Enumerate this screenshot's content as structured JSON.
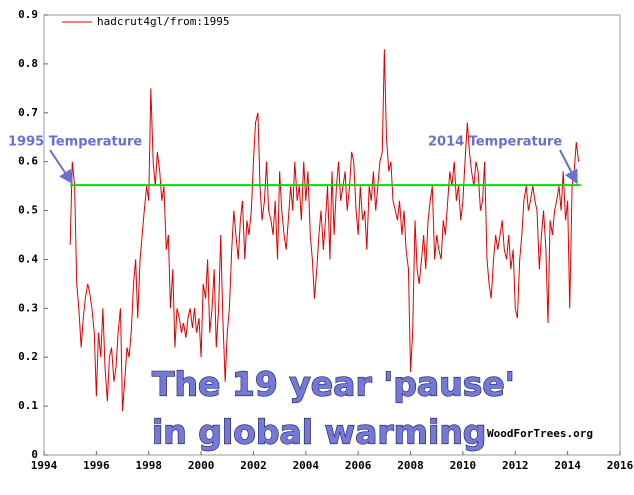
{
  "chart_data": {
    "type": "line",
    "series": [
      {
        "name": "hadcrut4gl/from:1995",
        "color": "#e00000",
        "x": [
          1995.0,
          1995.08,
          1995.17,
          1995.25,
          1995.33,
          1995.42,
          1995.5,
          1995.58,
          1995.67,
          1995.75,
          1995.83,
          1995.92,
          1996.0,
          1996.08,
          1996.17,
          1996.25,
          1996.33,
          1996.42,
          1996.5,
          1996.58,
          1996.67,
          1996.75,
          1996.83,
          1996.92,
          1997.0,
          1997.08,
          1997.17,
          1997.25,
          1997.33,
          1997.42,
          1997.5,
          1997.58,
          1997.67,
          1997.75,
          1997.83,
          1997.92,
          1998.0,
          1998.08,
          1998.17,
          1998.25,
          1998.33,
          1998.42,
          1998.5,
          1998.58,
          1998.67,
          1998.75,
          1998.83,
          1998.92,
          1999.0,
          1999.08,
          1999.17,
          1999.25,
          1999.33,
          1999.42,
          1999.5,
          1999.58,
          1999.67,
          1999.75,
          1999.83,
          1999.92,
          2000.0,
          2000.08,
          2000.17,
          2000.25,
          2000.33,
          2000.42,
          2000.5,
          2000.58,
          2000.67,
          2000.75,
          2000.83,
          2000.92,
          2001.0,
          2001.08,
          2001.17,
          2001.25,
          2001.33,
          2001.42,
          2001.5,
          2001.58,
          2001.67,
          2001.75,
          2001.83,
          2001.92,
          2002.0,
          2002.08,
          2002.17,
          2002.25,
          2002.33,
          2002.42,
          2002.5,
          2002.58,
          2002.67,
          2002.75,
          2002.83,
          2002.92,
          2003.0,
          2003.08,
          2003.17,
          2003.25,
          2003.33,
          2003.42,
          2003.5,
          2003.58,
          2003.67,
          2003.75,
          2003.83,
          2003.92,
          2004.0,
          2004.08,
          2004.17,
          2004.25,
          2004.33,
          2004.42,
          2004.5,
          2004.58,
          2004.67,
          2004.75,
          2004.83,
          2004.92,
          2005.0,
          2005.08,
          2005.17,
          2005.25,
          2005.33,
          2005.42,
          2005.5,
          2005.58,
          2005.67,
          2005.75,
          2005.83,
          2005.92,
          2006.0,
          2006.08,
          2006.17,
          2006.25,
          2006.33,
          2006.42,
          2006.5,
          2006.58,
          2006.67,
          2006.75,
          2006.83,
          2006.92,
          2007.0,
          2007.08,
          2007.17,
          2007.25,
          2007.33,
          2007.42,
          2007.5,
          2007.58,
          2007.67,
          2007.75,
          2007.83,
          2007.92,
          2008.0,
          2008.08,
          2008.17,
          2008.25,
          2008.33,
          2008.42,
          2008.5,
          2008.58,
          2008.67,
          2008.75,
          2008.83,
          2008.92,
          2009.0,
          2009.08,
          2009.17,
          2009.25,
          2009.33,
          2009.42,
          2009.5,
          2009.58,
          2009.67,
          2009.75,
          2009.83,
          2009.92,
          2010.0,
          2010.08,
          2010.17,
          2010.25,
          2010.33,
          2010.42,
          2010.5,
          2010.58,
          2010.67,
          2010.75,
          2010.83,
          2010.92,
          2011.0,
          2011.08,
          2011.17,
          2011.25,
          2011.33,
          2011.42,
          2011.5,
          2011.58,
          2011.67,
          2011.75,
          2011.83,
          2011.92,
          2012.0,
          2012.08,
          2012.17,
          2012.25,
          2012.33,
          2012.42,
          2012.5,
          2012.58,
          2012.67,
          2012.75,
          2012.83,
          2012.92,
          2013.0,
          2013.08,
          2013.17,
          2013.25,
          2013.33,
          2013.42,
          2013.5,
          2013.58,
          2013.67,
          2013.75,
          2013.83,
          2013.92,
          2014.0,
          2014.08,
          2014.17,
          2014.25,
          2014.33,
          2014.42
        ],
        "values": [
          0.43,
          0.6,
          0.55,
          0.35,
          0.3,
          0.22,
          0.28,
          0.32,
          0.35,
          0.33,
          0.3,
          0.25,
          0.12,
          0.25,
          0.2,
          0.3,
          0.18,
          0.11,
          0.2,
          0.22,
          0.15,
          0.18,
          0.25,
          0.3,
          0.09,
          0.15,
          0.22,
          0.2,
          0.25,
          0.35,
          0.4,
          0.28,
          0.4,
          0.45,
          0.5,
          0.55,
          0.52,
          0.75,
          0.6,
          0.55,
          0.62,
          0.58,
          0.52,
          0.55,
          0.42,
          0.45,
          0.3,
          0.38,
          0.22,
          0.3,
          0.28,
          0.25,
          0.27,
          0.24,
          0.28,
          0.3,
          0.26,
          0.3,
          0.25,
          0.28,
          0.2,
          0.35,
          0.32,
          0.4,
          0.25,
          0.3,
          0.38,
          0.22,
          0.3,
          0.45,
          0.28,
          0.15,
          0.25,
          0.3,
          0.42,
          0.5,
          0.45,
          0.4,
          0.48,
          0.52,
          0.4,
          0.48,
          0.45,
          0.5,
          0.6,
          0.68,
          0.7,
          0.55,
          0.48,
          0.52,
          0.6,
          0.5,
          0.48,
          0.45,
          0.52,
          0.4,
          0.58,
          0.5,
          0.45,
          0.42,
          0.48,
          0.55,
          0.5,
          0.6,
          0.52,
          0.55,
          0.48,
          0.6,
          0.52,
          0.58,
          0.45,
          0.4,
          0.32,
          0.38,
          0.45,
          0.5,
          0.42,
          0.48,
          0.55,
          0.4,
          0.58,
          0.45,
          0.55,
          0.6,
          0.52,
          0.55,
          0.58,
          0.5,
          0.55,
          0.62,
          0.6,
          0.5,
          0.45,
          0.55,
          0.48,
          0.5,
          0.42,
          0.55,
          0.52,
          0.58,
          0.5,
          0.55,
          0.6,
          0.62,
          0.83,
          0.65,
          0.58,
          0.6,
          0.52,
          0.5,
          0.48,
          0.52,
          0.45,
          0.5,
          0.42,
          0.38,
          0.17,
          0.25,
          0.48,
          0.38,
          0.35,
          0.4,
          0.45,
          0.38,
          0.48,
          0.52,
          0.55,
          0.4,
          0.45,
          0.42,
          0.4,
          0.48,
          0.45,
          0.52,
          0.58,
          0.55,
          0.6,
          0.52,
          0.55,
          0.48,
          0.52,
          0.6,
          0.68,
          0.62,
          0.58,
          0.55,
          0.6,
          0.58,
          0.5,
          0.52,
          0.6,
          0.4,
          0.35,
          0.32,
          0.4,
          0.45,
          0.42,
          0.45,
          0.48,
          0.42,
          0.4,
          0.45,
          0.38,
          0.42,
          0.3,
          0.28,
          0.4,
          0.45,
          0.52,
          0.55,
          0.5,
          0.52,
          0.55,
          0.52,
          0.5,
          0.38,
          0.45,
          0.5,
          0.42,
          0.27,
          0.48,
          0.45,
          0.5,
          0.52,
          0.55,
          0.5,
          0.58,
          0.48,
          0.52,
          0.3,
          0.55,
          0.58,
          0.64,
          0.6
        ]
      }
    ],
    "trend_line": {
      "x": [
        1995,
        2014.5
      ],
      "y": [
        0.552,
        0.552
      ],
      "color": "#00e000"
    },
    "xlim": [
      1994,
      2016
    ],
    "xticks": [
      1994,
      1996,
      1998,
      2000,
      2002,
      2004,
      2006,
      2008,
      2010,
      2012,
      2014,
      2016
    ],
    "ylim": [
      0,
      0.9
    ],
    "yticks": [
      0,
      0.1,
      0.2,
      0.3,
      0.4,
      0.5,
      0.6,
      0.7,
      0.8,
      0.9
    ],
    "annotations": [
      "1995 Temperature",
      "2014 Temperature"
    ],
    "headline": [
      "The 19 year 'pause'",
      "in global warming"
    ],
    "credit": "WoodForTrees.org"
  }
}
